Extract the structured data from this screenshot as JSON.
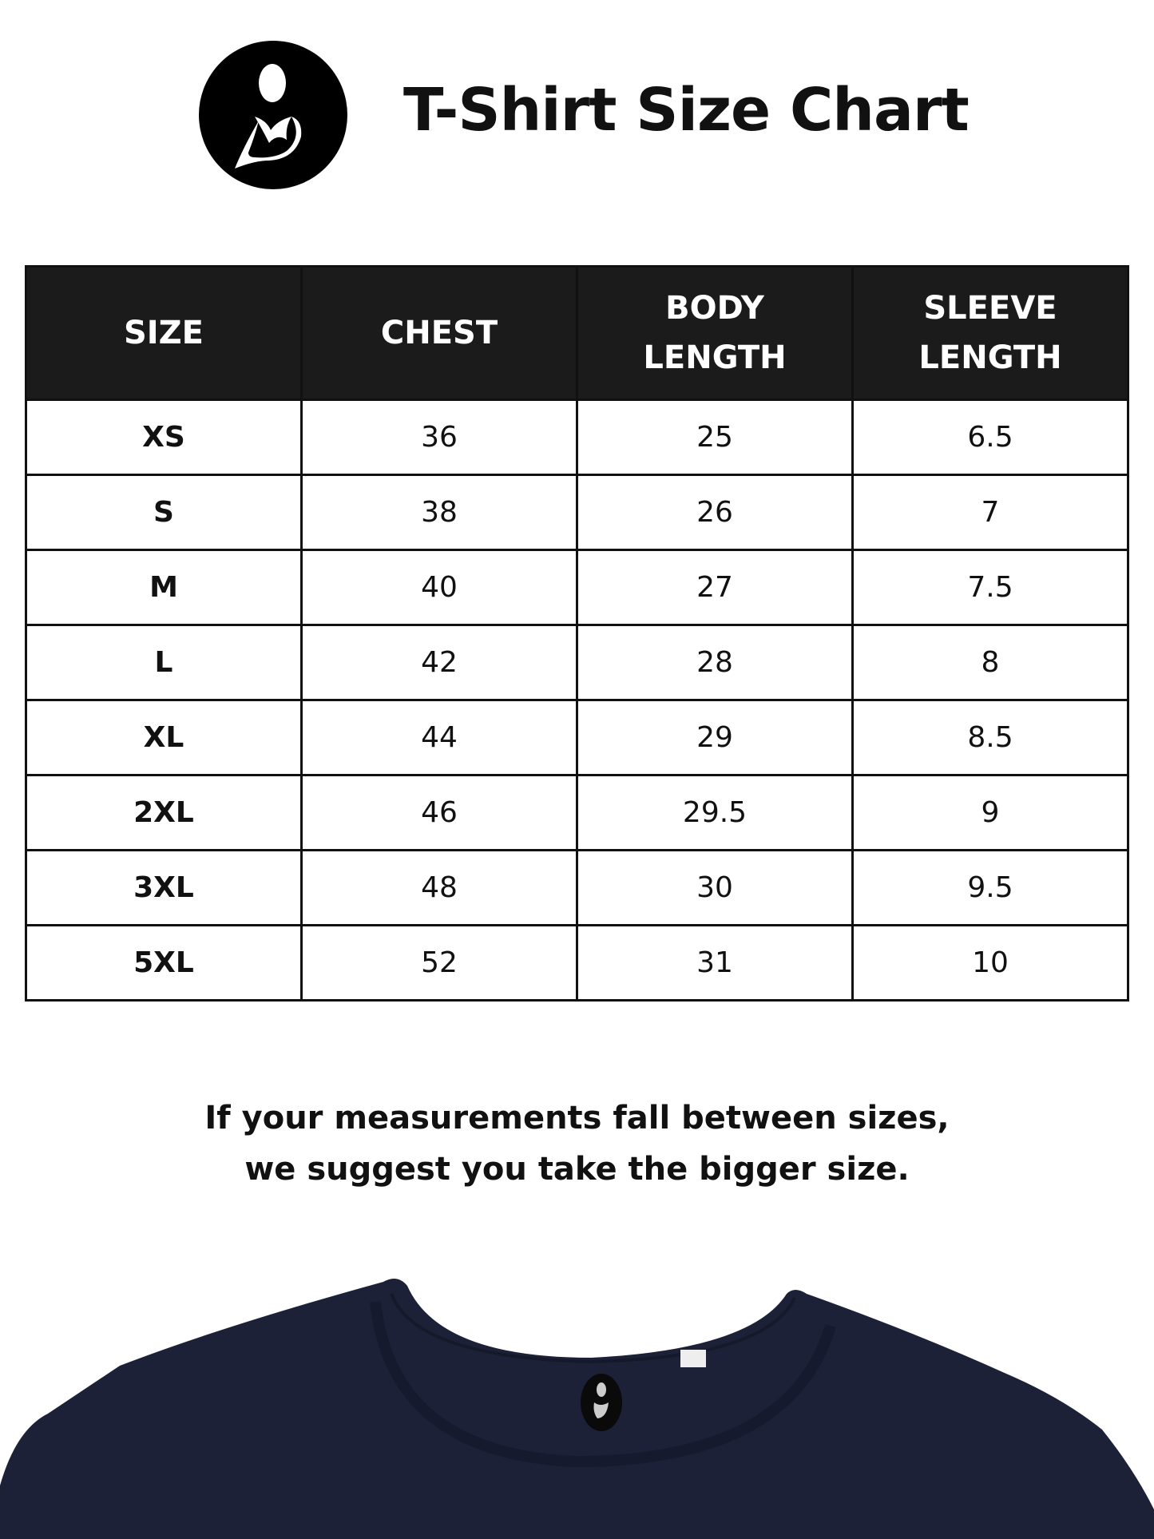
{
  "header": {
    "title": "T-Shirt Size Chart",
    "logo_icon": "mother-child-logo-icon"
  },
  "table": {
    "columns": [
      [
        "SIZE"
      ],
      [
        "CHEST"
      ],
      [
        "BODY",
        "LENGTH"
      ],
      [
        "SLEEVE",
        "LENGTH"
      ]
    ],
    "rows": [
      [
        "XS",
        "36",
        "25",
        "6.5"
      ],
      [
        "S",
        "38",
        "26",
        "7"
      ],
      [
        "M",
        "40",
        "27",
        "7.5"
      ],
      [
        "L",
        "42",
        "28",
        "8"
      ],
      [
        "XL",
        "44",
        "29",
        "8.5"
      ],
      [
        "2XL",
        "46",
        "29.5",
        "9"
      ],
      [
        "3XL",
        "48",
        "30",
        "9.5"
      ],
      [
        "5XL",
        "52",
        "31",
        "10"
      ]
    ]
  },
  "note": {
    "line1": "If your measurements fall between sizes,",
    "line2": "we suggest you take the bigger size."
  },
  "colors": {
    "header_bg": "#1b1b1b",
    "shirt": "#1c2138"
  }
}
